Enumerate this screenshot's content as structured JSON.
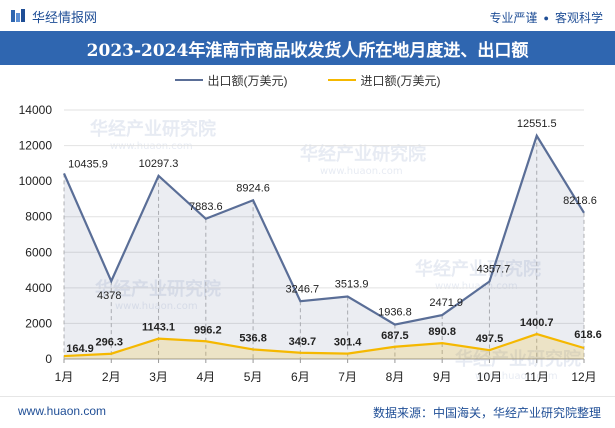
{
  "header": {
    "logo_text": "华经情报网",
    "slogan_left": "专业严谨",
    "slogan_dot": "●",
    "slogan_right": "客观科学"
  },
  "title": "2023-2024年淮南市商品收发货人所在地月度进、出口额",
  "watermark": "华经产业研究院",
  "watermark_url": "www.huaon.com",
  "footer": {
    "url": "www.huaon.com",
    "source": "数据来源：中国海关，华经产业研究院整理"
  },
  "colors": {
    "export": "#5a6e97",
    "import": "#f5b800",
    "title_bg": "#2f66b0",
    "brand": "#1f4e96"
  },
  "chart_data": {
    "type": "line",
    "categories": [
      "1月",
      "2月",
      "3月",
      "4月",
      "5月",
      "6月",
      "7月",
      "8月",
      "9月",
      "10月",
      "11月",
      "12月"
    ],
    "series": [
      {
        "name": "出口额(万美元)",
        "values": [
          10435.9,
          4378,
          10297.3,
          7883.6,
          8924.6,
          3246.7,
          3513.9,
          1936.8,
          2471.9,
          4357.7,
          12551.5,
          8218.6
        ],
        "labels": [
          "10435.9",
          "4378",
          "10297.3",
          "7883.6",
          "8924.6",
          "3246.7",
          "3513.9",
          "1936.8",
          "2471.9",
          "4357.7",
          "12551.5",
          "8218.6"
        ]
      },
      {
        "name": "进口额(万美元)",
        "values": [
          164.9,
          296.3,
          1143.1,
          996.2,
          536.8,
          349.7,
          301.4,
          687.5,
          890.8,
          497.5,
          1400.7,
          618.6
        ],
        "labels": [
          "164.9",
          "296.3",
          "1143.1",
          "996.2",
          "536.8",
          "349.7",
          "301.4",
          "687.5",
          "890.8",
          "497.5",
          "1400.7",
          "618.6"
        ]
      }
    ],
    "yticks": [
      "0",
      "2000",
      "4000",
      "6000",
      "8000",
      "10000",
      "12000",
      "14000"
    ],
    "ylim": [
      0,
      14000
    ],
    "grid": true,
    "legend": "top-center"
  }
}
